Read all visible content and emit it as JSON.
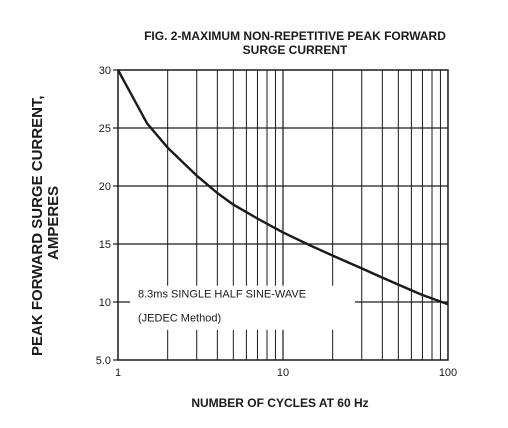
{
  "chart_data": {
    "type": "line",
    "title": "FIG. 2-MAXIMUM NON-REPETITIVE PEAK FORWARD",
    "subtitle": "SURGE CURRENT",
    "xlabel": "NUMBER OF CYCLES AT 60 Hz",
    "ylabel": "PEAK  FORWARD SURGE CURRENT,",
    "ylabel2": "AMPERES",
    "x_scale": "log",
    "xlim": [
      1,
      100
    ],
    "ylim": [
      5,
      30
    ],
    "grid": true,
    "x_tick_labels": [
      "1",
      "10",
      "100"
    ],
    "y_tick_labels": [
      "5.0",
      "10",
      "15",
      "20",
      "25",
      "30"
    ],
    "annotation1": "8.3ms SINGLE HALF SINE-WAVE",
    "annotation2": "(JEDEC Method)",
    "series": [
      {
        "x": [
          1,
          1.5,
          2,
          3,
          4,
          5,
          7,
          10,
          15,
          20,
          30,
          40,
          50,
          70,
          100
        ],
        "values": [
          30,
          25.4,
          23.3,
          20.9,
          19.4,
          18.4,
          17.2,
          16,
          14.8,
          14,
          12.9,
          12.1,
          11.5,
          10.6,
          9.8
        ]
      }
    ],
    "colors": {
      "curve": "#1a1a1a",
      "grid": "#1a1a1a"
    }
  }
}
